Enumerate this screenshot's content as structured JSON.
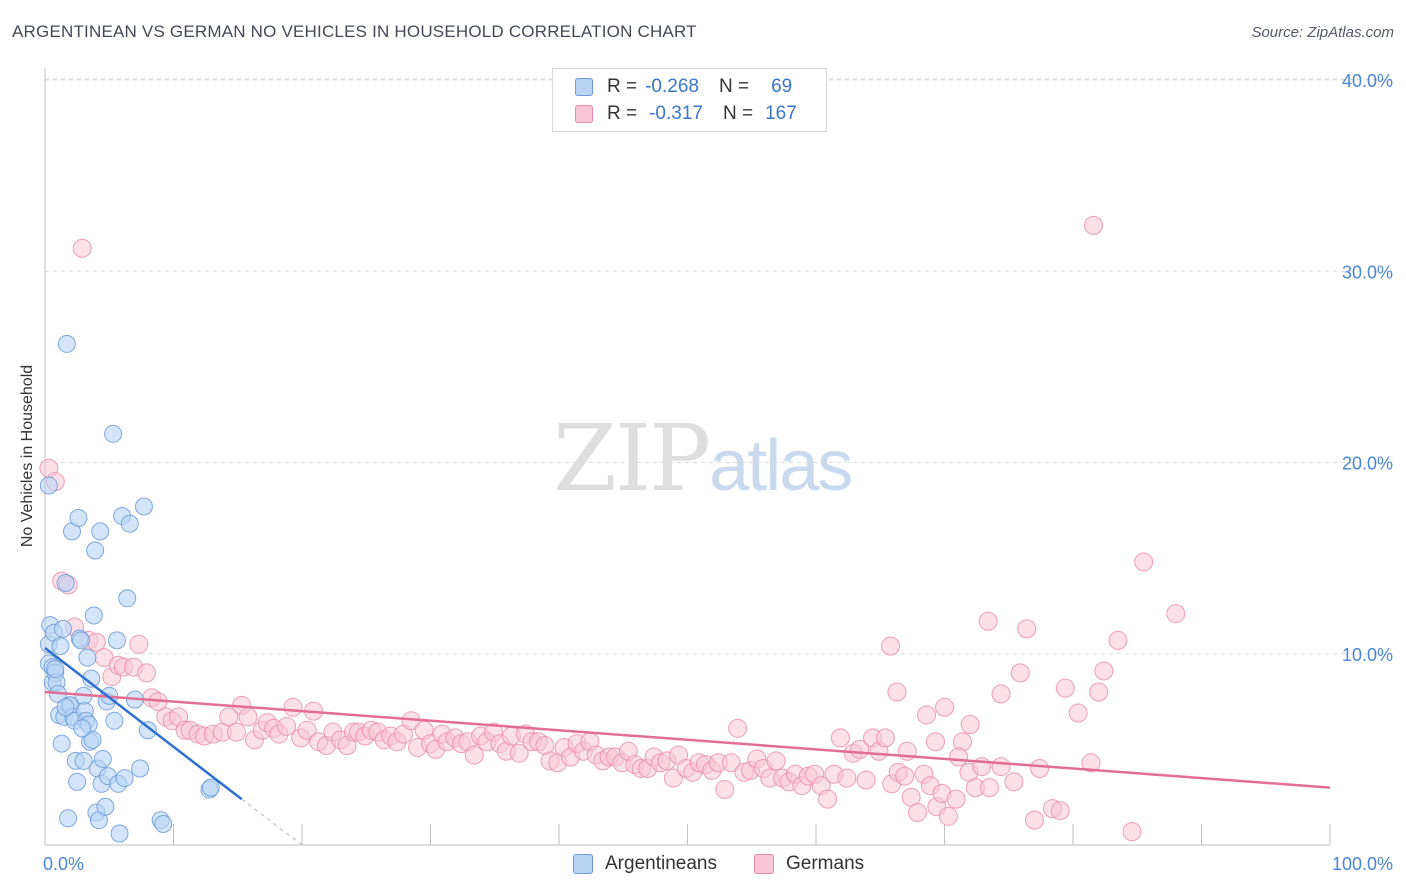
{
  "header": {
    "title": "ARGENTINEAN VS GERMAN NO VEHICLES IN HOUSEHOLD CORRELATION CHART",
    "source": "Source: ZipAtlas.com"
  },
  "watermark": {
    "zip": "ZIP",
    "atlas": "atlas"
  },
  "legend": {
    "rows": [
      {
        "r_label": "R =",
        "r_value": "-0.268",
        "n_label": "N =",
        "n_value": "69"
      },
      {
        "r_label": "R =",
        "r_value": "-0.317",
        "n_label": "N =",
        "n_value": "167"
      }
    ]
  },
  "colors": {
    "argentineans_fill": "#b9d3f5",
    "argentineans_stroke": "#6a9bd8",
    "argentineans_line": "#2f6fd0",
    "germans_fill": "#f8c6d6",
    "germans_stroke": "#e88aa8",
    "germans_line": "#e26d95"
  },
  "chart_data": {
    "type": "scatter",
    "title": "ARGENTINEAN VS GERMAN NO VEHICLES IN HOUSEHOLD CORRELATION CHART",
    "xlabel": "",
    "ylabel": "No Vehicles in Household",
    "xlim": [
      0,
      100
    ],
    "ylim": [
      0,
      40
    ],
    "x_tick_labels": [
      "0.0%",
      "100.0%"
    ],
    "y_ticks": [
      10,
      20,
      30,
      40
    ],
    "y_tick_labels": [
      "10.0%",
      "20.0%",
      "30.0%",
      "40.0%"
    ],
    "grid": true,
    "legend_position": "top-center",
    "series": [
      {
        "name": "Argentineans",
        "r": -0.268,
        "n": 69,
        "trend": {
          "x": [
            0,
            15.3
          ],
          "y": [
            10.3,
            2.4
          ],
          "extrap_x": [
            15.3,
            20
          ],
          "extrap_y": [
            2.4,
            0.0
          ]
        },
        "points": [
          [
            0.3,
            18.8
          ],
          [
            0.3,
            10.5
          ],
          [
            0.3,
            9.5
          ],
          [
            0.4,
            11.5
          ],
          [
            0.6,
            9.3
          ],
          [
            0.6,
            8.5
          ],
          [
            0.7,
            11.1
          ],
          [
            0.8,
            9.0
          ],
          [
            0.9,
            8.5
          ],
          [
            1.0,
            7.9
          ],
          [
            1.1,
            6.8
          ],
          [
            1.3,
            5.3
          ],
          [
            1.4,
            11.3
          ],
          [
            1.5,
            6.7
          ],
          [
            1.6,
            13.7
          ],
          [
            1.7,
            26.2
          ],
          [
            1.8,
            1.4
          ],
          [
            1.9,
            7.3
          ],
          [
            2.0,
            7.3
          ],
          [
            2.1,
            16.4
          ],
          [
            2.2,
            6.7
          ],
          [
            2.3,
            6.5
          ],
          [
            2.5,
            3.3
          ],
          [
            2.6,
            17.1
          ],
          [
            2.7,
            10.8
          ],
          [
            2.8,
            10.7
          ],
          [
            3.0,
            7.8
          ],
          [
            3.1,
            7.0
          ],
          [
            3.2,
            6.5
          ],
          [
            3.3,
            9.8
          ],
          [
            3.4,
            6.3
          ],
          [
            3.5,
            5.4
          ],
          [
            3.6,
            8.7
          ],
          [
            3.7,
            5.5
          ],
          [
            3.8,
            12.0
          ],
          [
            3.9,
            15.4
          ],
          [
            4.0,
            1.7
          ],
          [
            4.1,
            4.0
          ],
          [
            4.2,
            1.3
          ],
          [
            4.3,
            16.4
          ],
          [
            4.4,
            3.2
          ],
          [
            4.5,
            4.5
          ],
          [
            4.7,
            2.0
          ],
          [
            4.8,
            7.5
          ],
          [
            4.9,
            3.6
          ],
          [
            5.0,
            7.8
          ],
          [
            5.3,
            21.5
          ],
          [
            5.4,
            6.5
          ],
          [
            5.6,
            10.7
          ],
          [
            5.7,
            3.2
          ],
          [
            5.8,
            0.6
          ],
          [
            6.0,
            17.2
          ],
          [
            6.2,
            3.5
          ],
          [
            6.4,
            12.9
          ],
          [
            6.6,
            16.8
          ],
          [
            7.0,
            7.6
          ],
          [
            7.4,
            4.0
          ],
          [
            7.7,
            17.7
          ],
          [
            8.0,
            6.0
          ],
          [
            9.0,
            1.3
          ],
          [
            9.2,
            1.1
          ],
          [
            12.8,
            2.9
          ],
          [
            12.9,
            3.0
          ],
          [
            1.2,
            10.4
          ],
          [
            2.4,
            4.4
          ],
          [
            2.9,
            6.1
          ],
          [
            0.8,
            9.2
          ],
          [
            1.6,
            7.2
          ],
          [
            3.0,
            4.4
          ]
        ]
      },
      {
        "name": "Germans",
        "r": -0.317,
        "n": 167,
        "trend": {
          "x": [
            0,
            100
          ],
          "y": [
            8.0,
            3.0
          ]
        },
        "points": [
          [
            0.3,
            19.7
          ],
          [
            0.8,
            19.0
          ],
          [
            1.3,
            13.8
          ],
          [
            1.8,
            13.6
          ],
          [
            2.3,
            11.4
          ],
          [
            2.9,
            31.2
          ],
          [
            3.4,
            10.7
          ],
          [
            4.0,
            10.6
          ],
          [
            4.6,
            9.8
          ],
          [
            5.2,
            8.8
          ],
          [
            5.7,
            9.4
          ],
          [
            6.1,
            9.3
          ],
          [
            6.9,
            9.3
          ],
          [
            7.3,
            10.5
          ],
          [
            7.9,
            9.0
          ],
          [
            8.3,
            7.7
          ],
          [
            8.8,
            7.5
          ],
          [
            9.4,
            6.7
          ],
          [
            9.9,
            6.5
          ],
          [
            10.4,
            6.7
          ],
          [
            10.9,
            6.0
          ],
          [
            11.3,
            6.0
          ],
          [
            11.9,
            5.8
          ],
          [
            12.4,
            5.7
          ],
          [
            13.1,
            5.8
          ],
          [
            13.8,
            5.9
          ],
          [
            14.3,
            6.7
          ],
          [
            14.9,
            5.9
          ],
          [
            15.3,
            7.3
          ],
          [
            15.8,
            6.7
          ],
          [
            16.3,
            5.5
          ],
          [
            16.9,
            6.0
          ],
          [
            17.3,
            6.4
          ],
          [
            17.8,
            6.1
          ],
          [
            18.2,
            5.8
          ],
          [
            18.8,
            6.2
          ],
          [
            19.3,
            7.2
          ],
          [
            19.9,
            5.6
          ],
          [
            20.4,
            6.0
          ],
          [
            20.9,
            7.0
          ],
          [
            21.3,
            5.4
          ],
          [
            21.9,
            5.2
          ],
          [
            22.4,
            5.9
          ],
          [
            23.0,
            5.5
          ],
          [
            23.5,
            5.2
          ],
          [
            24.0,
            5.9
          ],
          [
            24.4,
            5.9
          ],
          [
            24.9,
            5.7
          ],
          [
            25.4,
            6.0
          ],
          [
            25.9,
            5.9
          ],
          [
            26.4,
            5.5
          ],
          [
            26.9,
            5.7
          ],
          [
            27.4,
            5.4
          ],
          [
            27.9,
            5.8
          ],
          [
            28.5,
            6.5
          ],
          [
            29.0,
            5.1
          ],
          [
            29.5,
            6.0
          ],
          [
            30.0,
            5.3
          ],
          [
            30.4,
            5.0
          ],
          [
            30.9,
            5.8
          ],
          [
            31.3,
            5.4
          ],
          [
            31.9,
            5.6
          ],
          [
            32.4,
            5.3
          ],
          [
            32.9,
            5.4
          ],
          [
            33.4,
            4.7
          ],
          [
            33.9,
            5.7
          ],
          [
            34.4,
            5.4
          ],
          [
            34.9,
            5.9
          ],
          [
            35.4,
            5.3
          ],
          [
            35.9,
            4.9
          ],
          [
            36.3,
            5.7
          ],
          [
            36.9,
            4.8
          ],
          [
            37.4,
            5.8
          ],
          [
            37.9,
            5.4
          ],
          [
            38.4,
            5.4
          ],
          [
            38.9,
            5.2
          ],
          [
            39.3,
            4.4
          ],
          [
            39.9,
            4.3
          ],
          [
            40.4,
            5.1
          ],
          [
            40.9,
            4.6
          ],
          [
            41.4,
            5.3
          ],
          [
            41.9,
            4.9
          ],
          [
            42.4,
            5.4
          ],
          [
            42.9,
            4.7
          ],
          [
            43.4,
            4.4
          ],
          [
            43.9,
            4.6
          ],
          [
            44.4,
            4.6
          ],
          [
            44.9,
            4.3
          ],
          [
            45.4,
            4.9
          ],
          [
            45.9,
            4.2
          ],
          [
            46.4,
            4.0
          ],
          [
            46.9,
            4.0
          ],
          [
            47.4,
            4.6
          ],
          [
            47.9,
            4.3
          ],
          [
            48.4,
            4.4
          ],
          [
            48.9,
            3.5
          ],
          [
            49.3,
            4.7
          ],
          [
            49.9,
            4.0
          ],
          [
            50.4,
            3.8
          ],
          [
            50.9,
            4.3
          ],
          [
            51.4,
            4.2
          ],
          [
            51.9,
            3.9
          ],
          [
            52.4,
            4.3
          ],
          [
            52.9,
            2.9
          ],
          [
            53.4,
            4.3
          ],
          [
            53.9,
            6.1
          ],
          [
            54.4,
            3.8
          ],
          [
            54.9,
            3.9
          ],
          [
            55.4,
            4.5
          ],
          [
            55.9,
            4.0
          ],
          [
            56.4,
            3.5
          ],
          [
            56.9,
            4.4
          ],
          [
            57.4,
            3.5
          ],
          [
            57.9,
            3.3
          ],
          [
            58.4,
            3.7
          ],
          [
            58.9,
            3.1
          ],
          [
            59.4,
            3.6
          ],
          [
            59.9,
            3.7
          ],
          [
            60.4,
            3.1
          ],
          [
            60.9,
            2.4
          ],
          [
            61.4,
            3.7
          ],
          [
            61.9,
            5.6
          ],
          [
            62.4,
            3.5
          ],
          [
            62.9,
            4.8
          ],
          [
            63.4,
            5.0
          ],
          [
            63.9,
            3.4
          ],
          [
            64.4,
            5.6
          ],
          [
            64.9,
            4.9
          ],
          [
            65.4,
            5.6
          ],
          [
            65.9,
            3.2
          ],
          [
            66.4,
            3.8
          ],
          [
            66.9,
            3.6
          ],
          [
            67.4,
            2.5
          ],
          [
            67.9,
            1.7
          ],
          [
            68.4,
            3.7
          ],
          [
            68.9,
            3.1
          ],
          [
            69.4,
            2.0
          ],
          [
            69.8,
            2.7
          ],
          [
            70.3,
            1.5
          ],
          [
            70.9,
            2.4
          ],
          [
            71.4,
            5.4
          ],
          [
            71.9,
            3.8
          ],
          [
            72.4,
            3.0
          ],
          [
            72.9,
            4.1
          ],
          [
            73.4,
            11.7
          ],
          [
            74.4,
            4.1
          ],
          [
            75.4,
            3.3
          ],
          [
            76.4,
            11.3
          ],
          [
            77.4,
            4.0
          ],
          [
            78.4,
            1.9
          ],
          [
            79.4,
            8.2
          ],
          [
            80.4,
            6.9
          ],
          [
            81.4,
            4.3
          ],
          [
            79.0,
            1.8
          ],
          [
            77.0,
            1.3
          ],
          [
            82.0,
            8.0
          ],
          [
            82.4,
            9.1
          ],
          [
            83.5,
            10.7
          ],
          [
            84.6,
            0.7
          ],
          [
            85.5,
            14.8
          ],
          [
            88.0,
            12.1
          ],
          [
            81.6,
            32.4
          ],
          [
            65.8,
            10.4
          ],
          [
            66.3,
            8.0
          ],
          [
            68.6,
            6.8
          ],
          [
            70.0,
            7.2
          ],
          [
            72.0,
            6.3
          ],
          [
            75.9,
            9.0
          ],
          [
            74.4,
            7.9
          ],
          [
            73.5,
            3.0
          ],
          [
            71.1,
            4.6
          ],
          [
            69.3,
            5.4
          ],
          [
            67.1,
            4.9
          ]
        ]
      }
    ]
  },
  "bottom_legend": {
    "items": [
      {
        "label": "Argentineans"
      },
      {
        "label": "Germans"
      }
    ]
  }
}
